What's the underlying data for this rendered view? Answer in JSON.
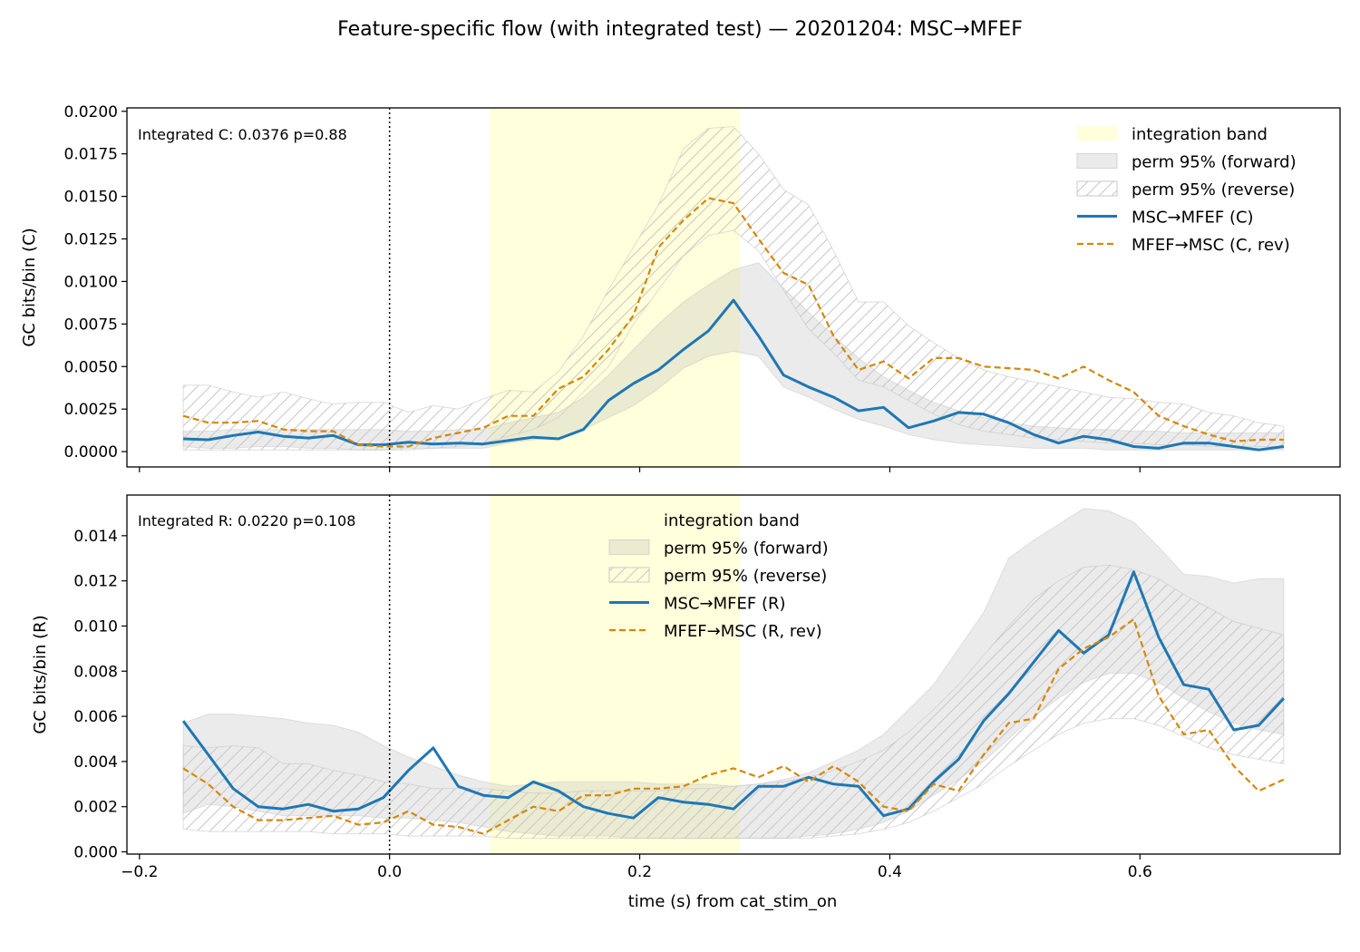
{
  "figure": {
    "title": "Feature-specific flow (with integrated test) — 20201204: MSC→MFEF",
    "xlabel": "time (s) from cat_stim_on"
  },
  "colors": {
    "forward": "#1f77b4",
    "reverse": "#d4880a",
    "band": "#ffffdc",
    "perm": "#ebebeb",
    "hatch": "#c8c8c8",
    "axes": "#000000"
  },
  "chart_data": [
    {
      "type": "line",
      "ylabel": "GC bits/bin (C)",
      "annotation": "Integrated C: 0.0376  p=0.88",
      "xlim": [
        -0.21,
        0.76
      ],
      "ylim": [
        -0.0009,
        0.0202
      ],
      "xticks": [
        -0.2,
        0.0,
        0.2,
        0.4,
        0.6
      ],
      "xticklabels": [],
      "yticks": [
        0.0,
        0.0025,
        0.005,
        0.0075,
        0.01,
        0.0125,
        0.015,
        0.0175,
        0.02
      ],
      "yticklabels": [
        "0.0000",
        "0.0025",
        "0.0050",
        "0.0075",
        "0.0100",
        "0.0125",
        "0.0150",
        "0.0175",
        "0.0200"
      ],
      "vline_x": 0.0,
      "integration_band": [
        0.08,
        0.28
      ],
      "legend_position": "top-right",
      "legend": [
        "integration band",
        "perm 95% (forward)",
        "perm 95% (reverse)",
        "MSC→MFEF (C)",
        "MFEF→MSC (C, rev)"
      ],
      "x": [
        -0.165,
        -0.145,
        -0.125,
        -0.105,
        -0.085,
        -0.065,
        -0.045,
        -0.025,
        -0.005,
        0.015,
        0.035,
        0.055,
        0.075,
        0.095,
        0.115,
        0.135,
        0.155,
        0.175,
        0.195,
        0.215,
        0.235,
        0.255,
        0.275,
        0.295,
        0.315,
        0.335,
        0.355,
        0.375,
        0.395,
        0.415,
        0.435,
        0.455,
        0.475,
        0.495,
        0.515,
        0.535,
        0.555,
        0.575,
        0.595,
        0.615,
        0.635,
        0.655,
        0.675,
        0.695,
        0.715
      ],
      "series": [
        {
          "name": "MSC→MFEF (C)",
          "role": "forward",
          "values": [
            0.00075,
            0.0007,
            0.00095,
            0.00115,
            0.0009,
            0.0008,
            0.00095,
            0.0004,
            0.0004,
            0.00055,
            0.00045,
            0.0005,
            0.00045,
            0.00065,
            0.00085,
            0.00075,
            0.0013,
            0.003,
            0.004,
            0.0048,
            0.006,
            0.0071,
            0.0089,
            0.0068,
            0.0045,
            0.0038,
            0.0032,
            0.0024,
            0.0026,
            0.0014,
            0.0018,
            0.0023,
            0.0022,
            0.0017,
            0.001,
            0.0005,
            0.0009,
            0.0007,
            0.0003,
            0.0002,
            0.0005,
            0.0005,
            0.0003,
            0.0001,
            0.0003
          ]
        },
        {
          "name": "MFEF→MSC (C, rev)",
          "role": "reverse",
          "values": [
            0.0021,
            0.0017,
            0.0017,
            0.0018,
            0.0013,
            0.0012,
            0.0012,
            0.0004,
            0.0003,
            0.0003,
            0.0008,
            0.0011,
            0.0014,
            0.0021,
            0.0021,
            0.0037,
            0.0044,
            0.006,
            0.008,
            0.012,
            0.0136,
            0.0149,
            0.0146,
            0.0125,
            0.0105,
            0.0098,
            0.0068,
            0.0048,
            0.0053,
            0.0043,
            0.0055,
            0.0055,
            0.005,
            0.0049,
            0.0048,
            0.0043,
            0.005,
            0.0042,
            0.0035,
            0.0021,
            0.0015,
            0.001,
            0.0006,
            0.0007,
            0.0007
          ]
        }
      ],
      "perm_forward": {
        "lower": [
          0.0003,
          0.0002,
          0.0002,
          0.0003,
          0.0003,
          0.0002,
          0.0002,
          0.0001,
          0.0001,
          0.0002,
          0.0002,
          0.0002,
          0.0002,
          0.0005,
          0.0007,
          0.0008,
          0.0013,
          0.002,
          0.0027,
          0.0037,
          0.0049,
          0.0056,
          0.0059,
          0.0056,
          0.0038,
          0.0032,
          0.0025,
          0.0019,
          0.0015,
          0.001,
          0.0007,
          0.0005,
          0.0004,
          0.0003,
          0.0002,
          0.0002,
          0.0002,
          0.0001,
          0.0001,
          0.0001,
          0.0001,
          0.0001,
          0.0001,
          0.0001,
          0.0001
        ],
        "upper": [
          0.0012,
          0.0012,
          0.0013,
          0.0013,
          0.0013,
          0.0013,
          0.0013,
          0.0013,
          0.0013,
          0.0012,
          0.0012,
          0.0013,
          0.0013,
          0.0017,
          0.002,
          0.0023,
          0.0032,
          0.0045,
          0.006,
          0.0075,
          0.0088,
          0.0098,
          0.0107,
          0.0111,
          0.0096,
          0.0082,
          0.0068,
          0.0055,
          0.0044,
          0.0036,
          0.0029,
          0.0024,
          0.002,
          0.0017,
          0.0015,
          0.0014,
          0.0013,
          0.0013,
          0.0012,
          0.0012,
          0.0011,
          0.0011,
          0.0011,
          0.0011,
          0.0011
        ]
      },
      "perm_reverse": {
        "lower": [
          0.0001,
          0.0001,
          0.0001,
          0.0001,
          0.0001,
          0.0001,
          0.0001,
          0.0001,
          0.0001,
          0.0001,
          0.0002,
          0.0003,
          0.0005,
          0.0009,
          0.0013,
          0.002,
          0.0035,
          0.005,
          0.0075,
          0.0095,
          0.0115,
          0.0127,
          0.013,
          0.0118,
          0.0095,
          0.0072,
          0.0058,
          0.0042,
          0.0038,
          0.003,
          0.0022,
          0.0016,
          0.0012,
          0.001,
          0.0008,
          0.0007,
          0.0006,
          0.0005,
          0.0005,
          0.0004,
          0.0004,
          0.0003,
          0.0003,
          0.0003,
          0.0003
        ],
        "upper": [
          0.0039,
          0.0039,
          0.0035,
          0.0032,
          0.0035,
          0.0031,
          0.0028,
          0.0029,
          0.0029,
          0.0023,
          0.0027,
          0.0025,
          0.0031,
          0.0036,
          0.0035,
          0.0047,
          0.0068,
          0.0095,
          0.012,
          0.0145,
          0.0178,
          0.019,
          0.0191,
          0.0175,
          0.0154,
          0.0145,
          0.0118,
          0.0088,
          0.0088,
          0.0074,
          0.0064,
          0.0055,
          0.0048,
          0.0044,
          0.0041,
          0.0038,
          0.0035,
          0.0032,
          0.0031,
          0.0029,
          0.0028,
          0.0023,
          0.0021,
          0.0017,
          0.0015
        ]
      }
    },
    {
      "type": "line",
      "ylabel": "GC bits/bin (R)",
      "annotation": "Integrated R: 0.0220  p=0.108",
      "xlim": [
        -0.21,
        0.76
      ],
      "ylim": [
        -0.0001,
        0.0158
      ],
      "xticks": [
        -0.2,
        0.0,
        0.2,
        0.4,
        0.6
      ],
      "xticklabels": [
        "−0.2",
        "0.0",
        "0.2",
        "0.4",
        "0.6"
      ],
      "yticks": [
        0.0,
        0.002,
        0.004,
        0.006,
        0.008,
        0.01,
        0.012,
        0.014
      ],
      "yticklabels": [
        "0.000",
        "0.002",
        "0.004",
        "0.006",
        "0.008",
        "0.010",
        "0.012",
        "0.014"
      ],
      "vline_x": 0.0,
      "integration_band": [
        0.08,
        0.28
      ],
      "legend_position": "top-center",
      "legend": [
        "integration band",
        "perm 95% (forward)",
        "perm 95% (reverse)",
        "MSC→MFEF (R)",
        "MFEF→MSC (R, rev)"
      ],
      "x": [
        -0.165,
        -0.145,
        -0.125,
        -0.105,
        -0.085,
        -0.065,
        -0.045,
        -0.025,
        -0.005,
        0.015,
        0.035,
        0.055,
        0.075,
        0.095,
        0.115,
        0.135,
        0.155,
        0.175,
        0.195,
        0.215,
        0.235,
        0.255,
        0.275,
        0.295,
        0.315,
        0.335,
        0.355,
        0.375,
        0.395,
        0.415,
        0.435,
        0.455,
        0.475,
        0.495,
        0.515,
        0.535,
        0.555,
        0.575,
        0.595,
        0.615,
        0.635,
        0.655,
        0.675,
        0.695,
        0.715
      ],
      "series": [
        {
          "name": "MSC→MFEF (R)",
          "role": "forward",
          "values": [
            0.0058,
            0.0043,
            0.0028,
            0.002,
            0.0019,
            0.0021,
            0.0018,
            0.0019,
            0.0024,
            0.0036,
            0.0046,
            0.0029,
            0.0025,
            0.0024,
            0.0031,
            0.0027,
            0.002,
            0.0017,
            0.0015,
            0.0024,
            0.0022,
            0.0021,
            0.0019,
            0.0029,
            0.0029,
            0.0033,
            0.003,
            0.0029,
            0.0016,
            0.0019,
            0.0031,
            0.0041,
            0.0058,
            0.007,
            0.0084,
            0.0098,
            0.0088,
            0.0096,
            0.0124,
            0.0095,
            0.0074,
            0.0072,
            0.0054,
            0.0056,
            0.0068
          ]
        },
        {
          "name": "MFEF→MSC (R, rev)",
          "role": "reverse",
          "values": [
            0.0037,
            0.003,
            0.002,
            0.0014,
            0.0014,
            0.0015,
            0.0016,
            0.0012,
            0.0013,
            0.0018,
            0.0012,
            0.0011,
            0.0008,
            0.0014,
            0.002,
            0.0018,
            0.0025,
            0.0025,
            0.0028,
            0.0028,
            0.0029,
            0.0034,
            0.0037,
            0.0033,
            0.0038,
            0.0031,
            0.0038,
            0.0031,
            0.002,
            0.0018,
            0.003,
            0.0027,
            0.0043,
            0.0057,
            0.0059,
            0.0081,
            0.009,
            0.0095,
            0.0103,
            0.0069,
            0.0052,
            0.0054,
            0.0038,
            0.0027,
            0.0032
          ]
        }
      ],
      "perm_forward": {
        "lower": [
          0.0017,
          0.0021,
          0.002,
          0.0018,
          0.0016,
          0.0016,
          0.0016,
          0.0016,
          0.0015,
          0.0015,
          0.0014,
          0.0013,
          0.0011,
          0.0009,
          0.0008,
          0.0007,
          0.0007,
          0.0007,
          0.0006,
          0.0006,
          0.0006,
          0.0006,
          0.0006,
          0.0006,
          0.0006,
          0.0007,
          0.0008,
          0.001,
          0.0013,
          0.0018,
          0.0025,
          0.0032,
          0.004,
          0.005,
          0.006,
          0.0068,
          0.0075,
          0.0079,
          0.0079,
          0.0075,
          0.0068,
          0.0062,
          0.0057,
          0.0054,
          0.0052
        ],
        "upper": [
          0.0057,
          0.0061,
          0.0061,
          0.006,
          0.0059,
          0.0057,
          0.0056,
          0.0053,
          0.0047,
          0.0042,
          0.0038,
          0.0034,
          0.0031,
          0.0029,
          0.003,
          0.0031,
          0.0031,
          0.0031,
          0.0031,
          0.003,
          0.003,
          0.003,
          0.0029,
          0.003,
          0.0032,
          0.0035,
          0.004,
          0.0045,
          0.0052,
          0.0063,
          0.0074,
          0.009,
          0.0106,
          0.013,
          0.0138,
          0.0145,
          0.0152,
          0.0151,
          0.0146,
          0.0135,
          0.0123,
          0.0122,
          0.0119,
          0.0121,
          0.0121
        ]
      },
      "perm_reverse": {
        "lower": [
          0.001,
          0.0009,
          0.0009,
          0.0009,
          0.0009,
          0.0009,
          0.0008,
          0.0008,
          0.0008,
          0.0007,
          0.0007,
          0.0007,
          0.0007,
          0.0006,
          0.0006,
          0.0006,
          0.0006,
          0.0006,
          0.0006,
          0.0006,
          0.0006,
          0.0006,
          0.0006,
          0.0006,
          0.0006,
          0.0006,
          0.0007,
          0.0008,
          0.001,
          0.0013,
          0.0018,
          0.0024,
          0.003,
          0.0038,
          0.0045,
          0.0052,
          0.0057,
          0.0059,
          0.0059,
          0.0056,
          0.0051,
          0.0046,
          0.0043,
          0.0041,
          0.0039
        ],
        "upper": [
          0.0047,
          0.0046,
          0.0047,
          0.0046,
          0.0039,
          0.0039,
          0.0036,
          0.0034,
          0.0031,
          0.003,
          0.0028,
          0.0028,
          0.0028,
          0.0027,
          0.0026,
          0.0026,
          0.0027,
          0.0027,
          0.0027,
          0.0027,
          0.0028,
          0.0028,
          0.0029,
          0.003,
          0.0031,
          0.0033,
          0.0036,
          0.004,
          0.0045,
          0.0053,
          0.0063,
          0.0074,
          0.0087,
          0.01,
          0.0112,
          0.012,
          0.0126,
          0.0127,
          0.0125,
          0.0121,
          0.0114,
          0.0108,
          0.0102,
          0.0099,
          0.0096
        ]
      }
    }
  ]
}
